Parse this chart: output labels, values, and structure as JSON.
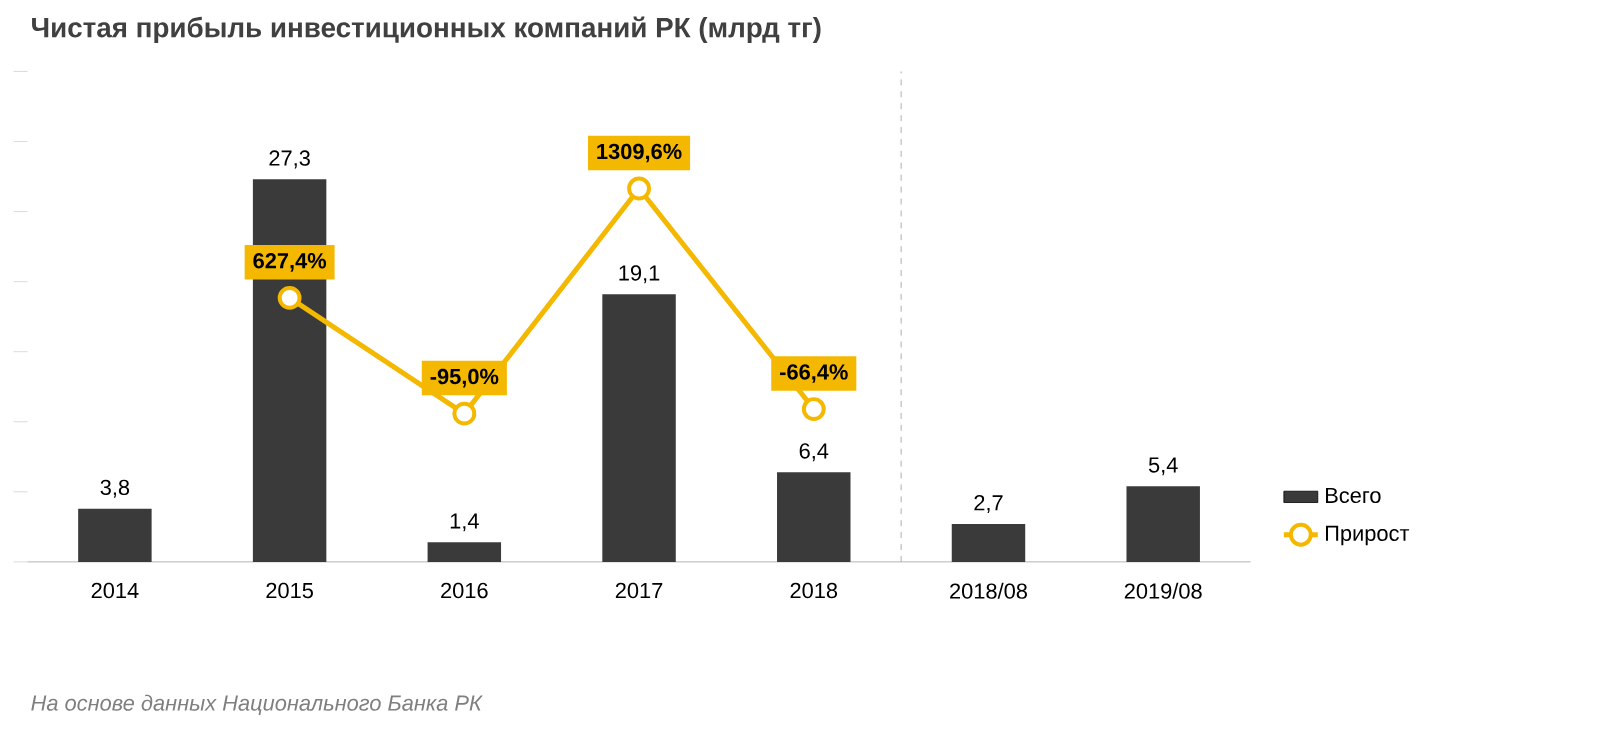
{
  "chart_data": {
    "type": "bar",
    "title": "Чистая прибыль инвестиционных компаний РК (млрд тг)",
    "categories": [
      "2014",
      "2015",
      "2016",
      "2017",
      "2018",
      "2018/08",
      "2019/08"
    ],
    "series": [
      {
        "name": "Всего",
        "color": "#3a3a3a",
        "values": [
          3.8,
          27.3,
          1.4,
          19.1,
          6.4,
          2.7,
          5.4
        ],
        "value_labels": [
          "3,8",
          "27,3",
          "1,4",
          "19,1",
          "6,4",
          "2,7",
          "5,4"
        ]
      },
      {
        "name": "Прирост",
        "type": "line",
        "axis": "y2",
        "color": "#f5b800",
        "values": [
          null,
          627.4,
          -95.0,
          1309.6,
          -66.4,
          null,
          null
        ],
        "value_labels": [
          null,
          "627,4%",
          "-95,0%",
          "1309,6%",
          "-66,4%",
          null,
          null
        ]
      }
    ],
    "ylim": [
      0,
      35
    ],
    "yticks": [
      {
        "value": 0,
        "label": null
      },
      {
        "value": 5,
        "label": null
      },
      {
        "value": 10,
        "label": null
      },
      {
        "value": 15,
        "label": null
      },
      {
        "value": 20,
        "label": null
      },
      {
        "value": 25,
        "label": null
      },
      {
        "value": 30,
        "label": null
      },
      {
        "value": 35,
        "label": null
      }
    ],
    "y2lim": [
      -1020,
      2040
    ],
    "legend": "bottom right",
    "marker": "circle",
    "annotations": [
      "На основе данных Национального Банка РК"
    ]
  }
}
